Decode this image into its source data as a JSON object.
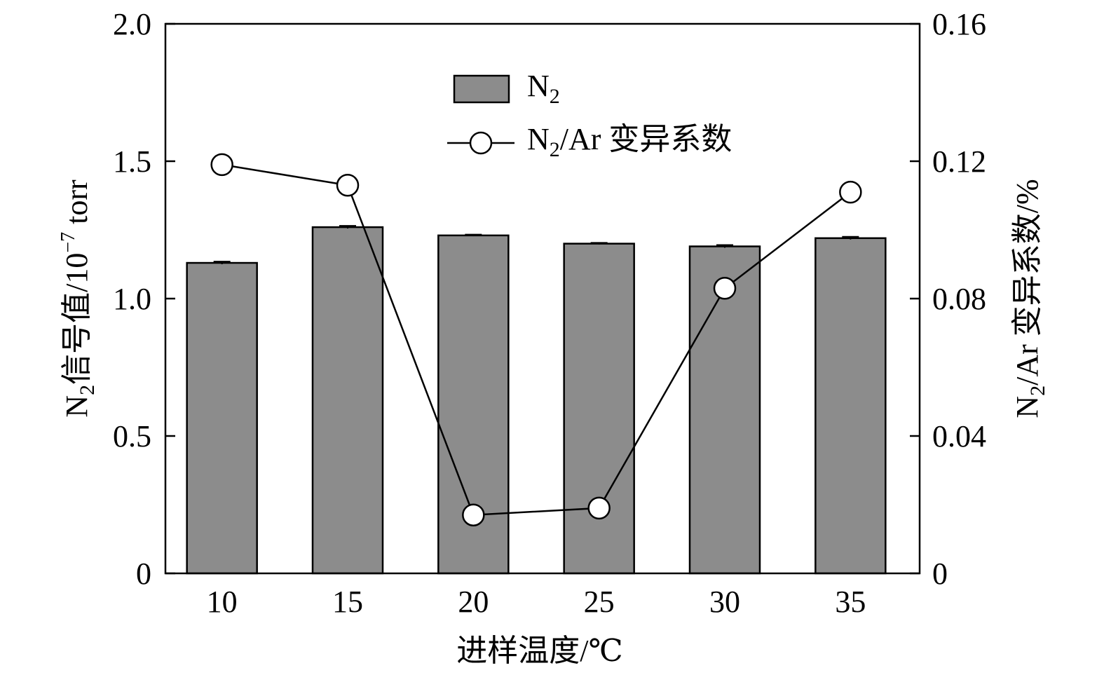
{
  "chart_data": {
    "type": "bar",
    "categories": [
      "10",
      "15",
      "20",
      "25",
      "30",
      "35"
    ],
    "series": [
      {
        "name": "N2",
        "legend_label": "N",
        "legend_subscript": "2",
        "axis": "left",
        "type": "bar",
        "values": [
          1.13,
          1.26,
          1.23,
          1.2,
          1.19,
          1.22
        ],
        "error": [
          0.005,
          0.005,
          0.003,
          0.003,
          0.005,
          0.005
        ],
        "color": "#8c8c8c"
      },
      {
        "name": "N2/Ar 变异系数",
        "legend_label_pre": "N",
        "legend_label_sub": "2",
        "legend_label_post": "/Ar 变异系数",
        "axis": "right",
        "type": "line",
        "marker": "open-circle",
        "values": [
          0.119,
          0.113,
          0.017,
          0.019,
          0.083,
          0.111
        ],
        "color": "#000000"
      }
    ],
    "xlabel": "进样温度/℃",
    "ylabel_left": {
      "pre": "N",
      "sub": "2",
      "mid": "信号值/10",
      "sup": "−7",
      "post": " torr"
    },
    "ylabel_right": {
      "pre": "N",
      "sub": "2",
      "post": "/Ar 变异系数/%"
    },
    "ylim_left": [
      0,
      2.0
    ],
    "ylim_right": [
      0,
      0.16
    ],
    "yticks_left": [
      "0",
      "0.5",
      "1.0",
      "1.5",
      "2.0"
    ],
    "yticks_right": [
      "0",
      "0.04",
      "0.08",
      "0.12",
      "0.16"
    ],
    "grid": false,
    "legend_position": "top-left-center"
  }
}
